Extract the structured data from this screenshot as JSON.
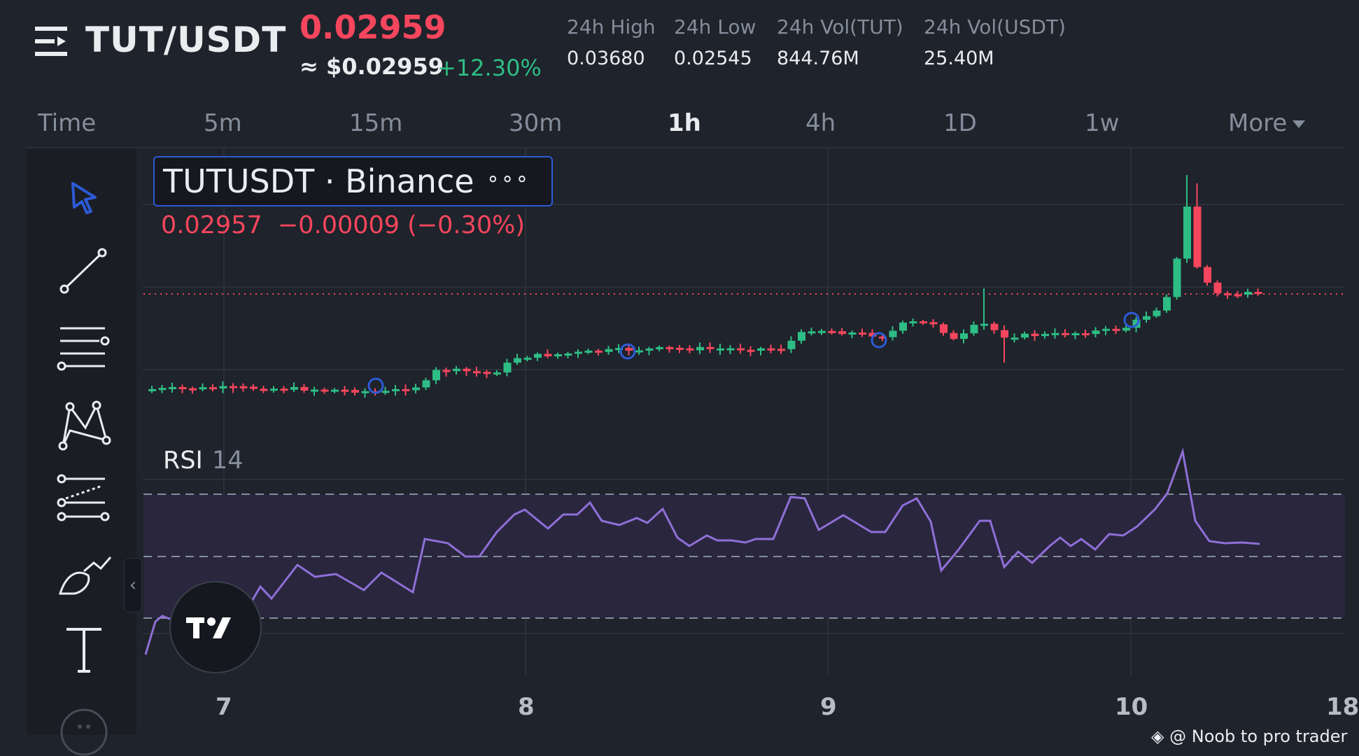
{
  "header": {
    "pair": "TUT/USDT",
    "last_price": "0.02959",
    "approx_price": "≈ $0.02959",
    "change_pct": "+12.30%",
    "stats": [
      {
        "label": "24h High",
        "value": "0.03680"
      },
      {
        "label": "24h Low",
        "value": "0.02545"
      },
      {
        "label": "24h Vol(TUT)",
        "value": "844.76M"
      },
      {
        "label": "24h Vol(USDT)",
        "value": "25.40M"
      }
    ]
  },
  "tabs": [
    "Time",
    "5m",
    "15m",
    "30m",
    "1h",
    "4h",
    "1D",
    "1w",
    "More"
  ],
  "active_tab": "1h",
  "toolbar": {
    "tools": [
      "cursor-icon",
      "trend-line-icon",
      "horizontal-lines-icon",
      "pattern-icon",
      "forecast-icon",
      "brush-icon",
      "text-icon",
      "more-icon"
    ],
    "collapse_label": "‹"
  },
  "chart": {
    "symbol_label": "TUTUSDT · Binance",
    "more_label": "∘∘∘",
    "ohlc_line": "0.02957  −0.00009 (−0.30%)",
    "rsi_label": "RSI",
    "rsi_period": "14",
    "x_labels": [
      "7",
      "8",
      "9",
      "10",
      "18"
    ]
  },
  "colors": {
    "up": "#2ebd85",
    "down": "#f6465d",
    "rsi_line": "#8f6fd6",
    "accent": "#2d5bd7"
  },
  "watermark": "@ Noob to pro trader"
}
